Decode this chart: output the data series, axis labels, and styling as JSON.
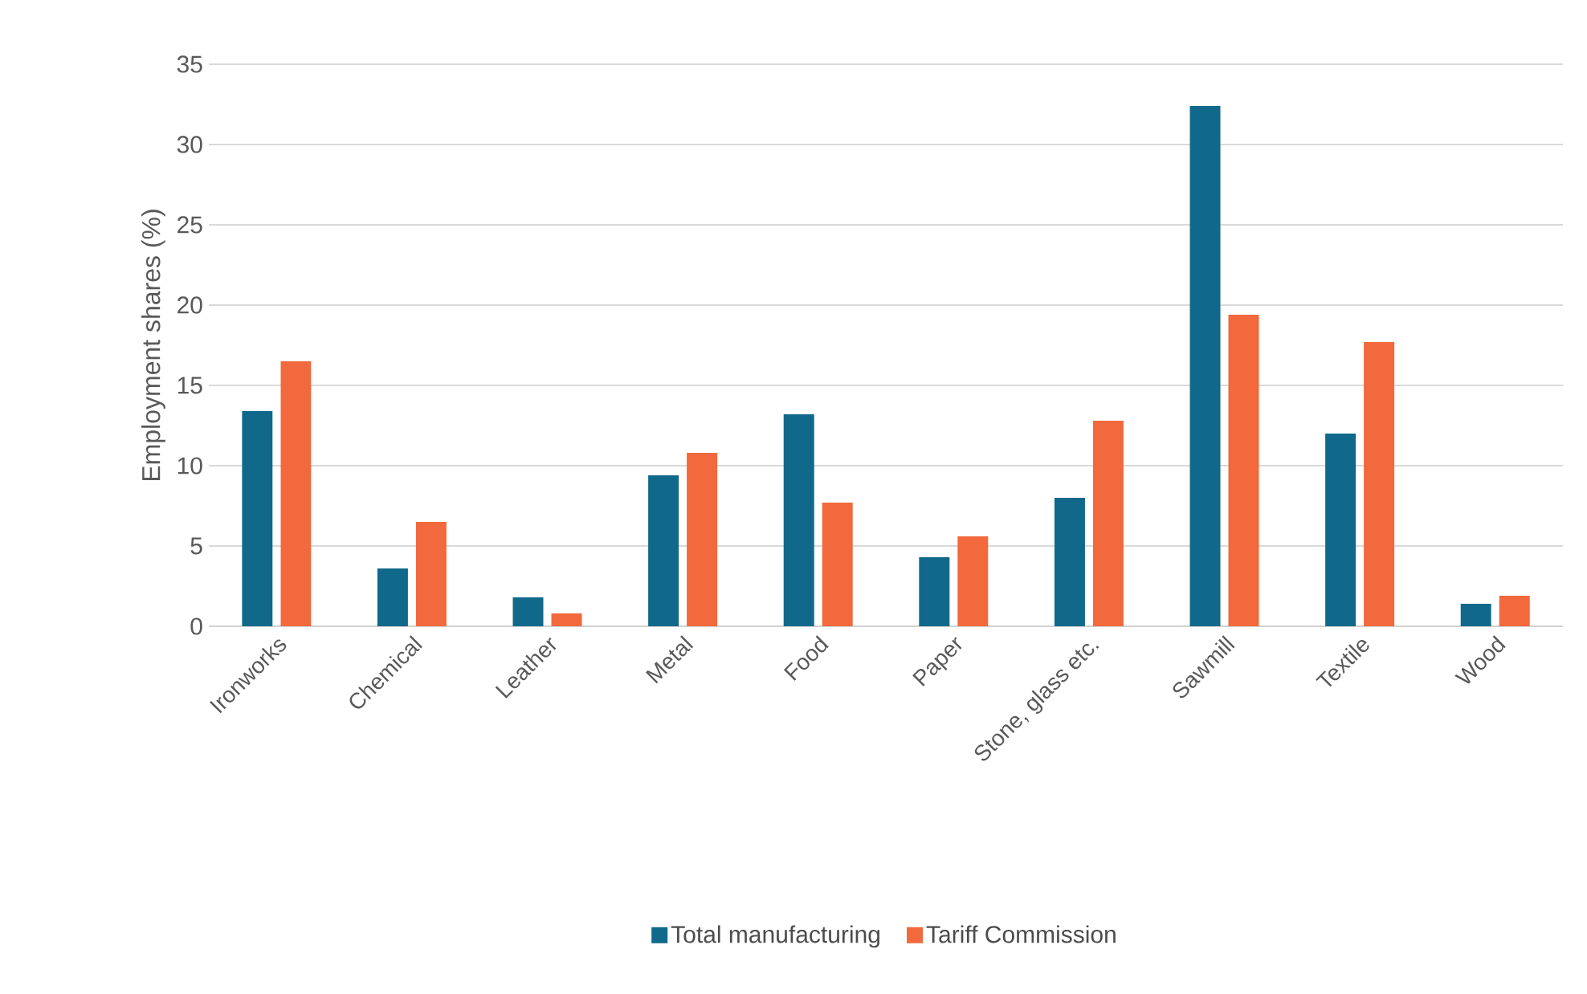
{
  "chart_data": {
    "type": "bar",
    "ylabel": "Employment shares (%)",
    "categories": [
      "Ironworks",
      "Chemical",
      "Leather",
      "Metal",
      "Food",
      "Paper",
      "Stone, glass etc.",
      "Sawmill",
      "Textile",
      "Wood"
    ],
    "series": [
      {
        "name": "Total manufacturing",
        "color": "#10698a",
        "values": [
          13.4,
          3.6,
          1.8,
          9.4,
          13.2,
          4.3,
          8.0,
          32.4,
          12.0,
          1.4
        ]
      },
      {
        "name": "Tariff Commission",
        "color": "#f1693c",
        "values": [
          16.5,
          6.5,
          0.8,
          10.8,
          7.7,
          5.6,
          12.8,
          19.4,
          17.7,
          1.9
        ]
      }
    ],
    "ylim": [
      0,
      35
    ],
    "yticks": [
      0,
      5,
      10,
      15,
      20,
      25,
      30,
      35
    ],
    "grid": "y",
    "legend": "bottom"
  }
}
